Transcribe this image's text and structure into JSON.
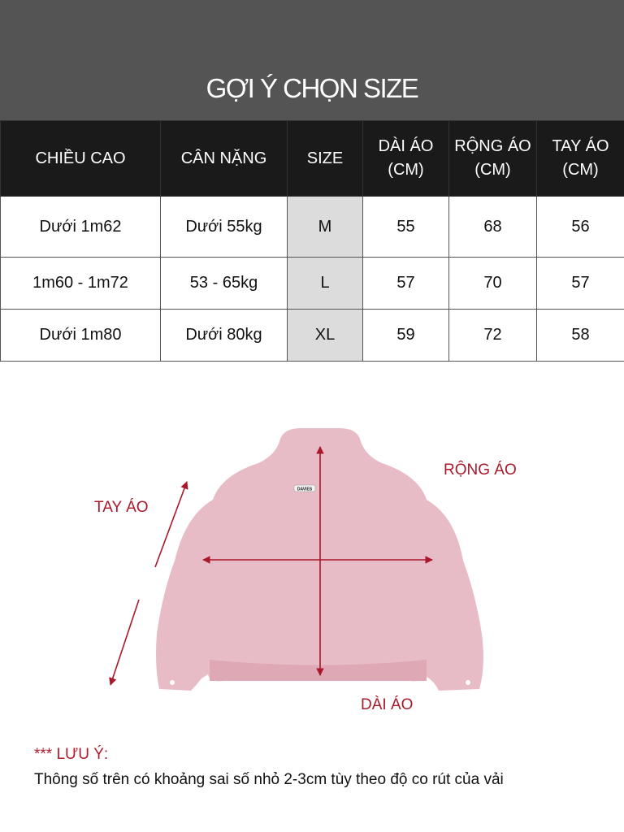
{
  "title": "GỢI Ý CHỌN SIZE",
  "table": {
    "headers": [
      [
        "CHIỀU CAO"
      ],
      [
        "CÂN NẶNG"
      ],
      [
        "SIZE"
      ],
      [
        "DÀI ÁO",
        "(CM)"
      ],
      [
        "RỘNG ÁO",
        "(CM)"
      ],
      [
        "TAY ÁO",
        "(CM)"
      ]
    ],
    "rows": [
      [
        "Dưới 1m62",
        "Dưới 55kg",
        "M",
        "55",
        "68",
        "56"
      ],
      [
        "1m60 - 1m72",
        "53 - 65kg",
        "L",
        "57",
        "70",
        "57"
      ],
      [
        "Dưới 1m80",
        "Dưới 80kg",
        "XL",
        "59",
        "72",
        "58"
      ]
    ]
  },
  "diagram": {
    "labels": {
      "sleeve": "TAY ÁO",
      "width": "RỘNG ÁO",
      "length": "DÀI ÁO"
    },
    "brand_tag": "DAVIES",
    "garment_color": "#e8bcc6",
    "arrow_color": "#a8182a"
  },
  "note": {
    "heading": "*** LƯU Ý:",
    "text": "Thông số trên có khoảng sai số nhỏ 2-3cm tùy theo độ co rút của vải"
  }
}
